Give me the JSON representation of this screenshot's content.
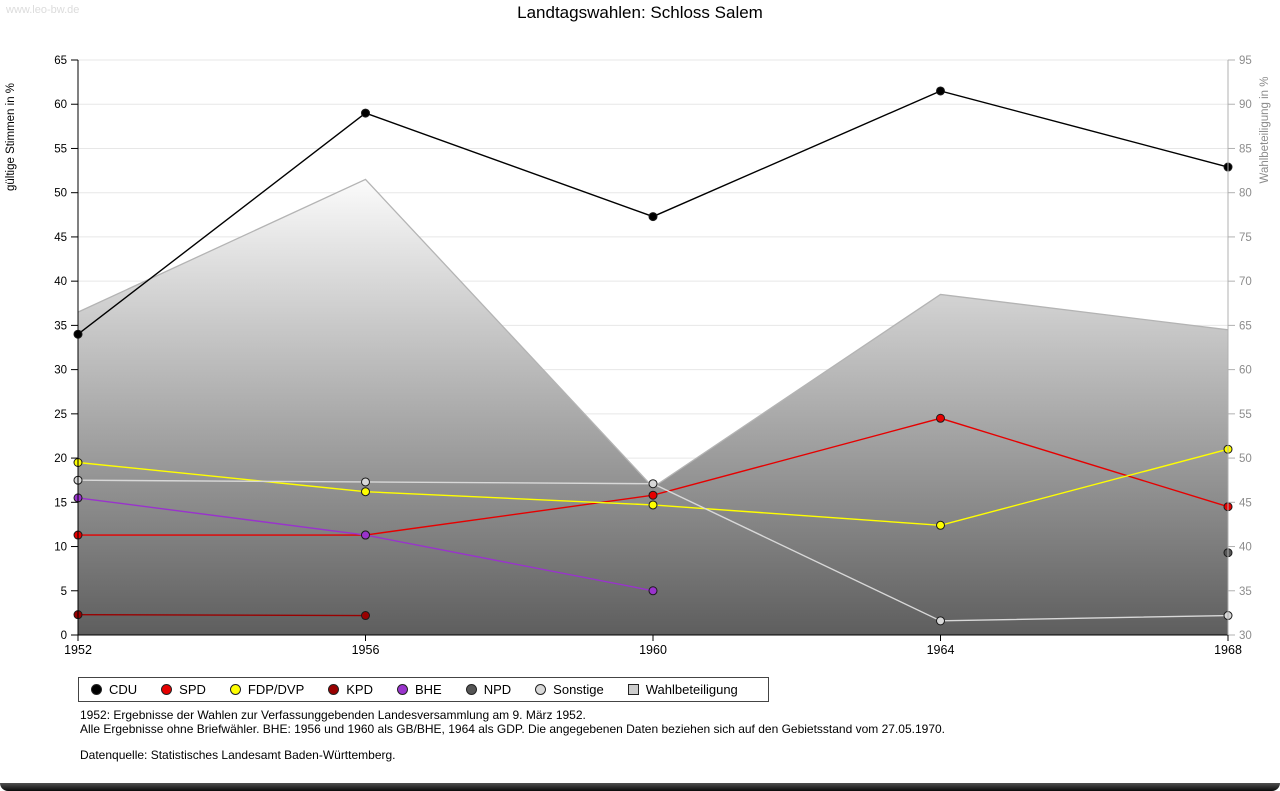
{
  "watermark": "www.leo-bw.de",
  "title": "Landtagswahlen: Schloss Salem",
  "footnotes": [
    "1952: Ergebnisse der Wahlen zur Verfassunggebenden Landesversammlung am 9. März 1952.",
    "Alle Ergebnisse ohne Briefwähler. BHE: 1956 und 1960 als GB/BHE, 1964 als GDP. Die angegebenen Daten beziehen sich auf den Gebietsstand vom 27.05.1970.",
    "Datenquelle: Statistisches Landesamt Baden-Württemberg."
  ],
  "legend": [
    {
      "label": "CDU",
      "color": "#000000",
      "marker": "circle"
    },
    {
      "label": "SPD",
      "color": "#e60000",
      "marker": "circle"
    },
    {
      "label": "FDP/DVP",
      "color": "#ffff00",
      "marker": "circle"
    },
    {
      "label": "KPD",
      "color": "#990000",
      "marker": "circle"
    },
    {
      "label": "BHE",
      "color": "#9933cc",
      "marker": "circle"
    },
    {
      "label": "NPD",
      "color": "#555555",
      "marker": "circle"
    },
    {
      "label": "Sonstige",
      "color": "#d8d8d8",
      "marker": "circle"
    },
    {
      "label": "Wahlbeteiligung",
      "color": "#cccccc",
      "marker": "square"
    }
  ],
  "chart_data": {
    "type": "line",
    "x": [
      1952,
      1956,
      1960,
      1964,
      1968
    ],
    "left_axis": {
      "label": "gültige Stimmen in %",
      "min": 0,
      "max": 65,
      "step": 5
    },
    "right_axis": {
      "label": "Wahlbeteiligung in %",
      "min": 30,
      "max": 95,
      "step": 5
    },
    "grid": true,
    "legend_position": "bottom",
    "series": [
      {
        "name": "CDU",
        "axis": "left",
        "color": "#000000",
        "values": [
          34.0,
          59.0,
          47.3,
          61.5,
          52.9
        ]
      },
      {
        "name": "SPD",
        "axis": "left",
        "color": "#e60000",
        "values": [
          11.3,
          11.3,
          15.8,
          24.5,
          14.5
        ]
      },
      {
        "name": "FDP/DVP",
        "axis": "left",
        "color": "#ffff00",
        "values": [
          19.5,
          16.2,
          14.7,
          12.4,
          21.0
        ]
      },
      {
        "name": "KPD",
        "axis": "left",
        "color": "#990000",
        "values": [
          2.3,
          2.2,
          null,
          null,
          null
        ]
      },
      {
        "name": "BHE",
        "axis": "left",
        "color": "#9933cc",
        "values": [
          15.5,
          11.3,
          5.0,
          null,
          null
        ]
      },
      {
        "name": "NPD",
        "axis": "left",
        "color": "#555555",
        "values": [
          null,
          null,
          null,
          null,
          9.3
        ]
      },
      {
        "name": "Sonstige",
        "axis": "left",
        "color": "#d8d8d8",
        "values": [
          17.5,
          17.3,
          17.1,
          1.6,
          2.2
        ]
      }
    ],
    "area_series": {
      "name": "Wahlbeteiligung",
      "axis": "right",
      "color_top": "#fbfbfb",
      "color_bottom": "#5e5e5e",
      "edge_color": "#b4b4b4",
      "values": [
        66.5,
        81.5,
        46.7,
        68.5,
        64.5
      ]
    }
  }
}
